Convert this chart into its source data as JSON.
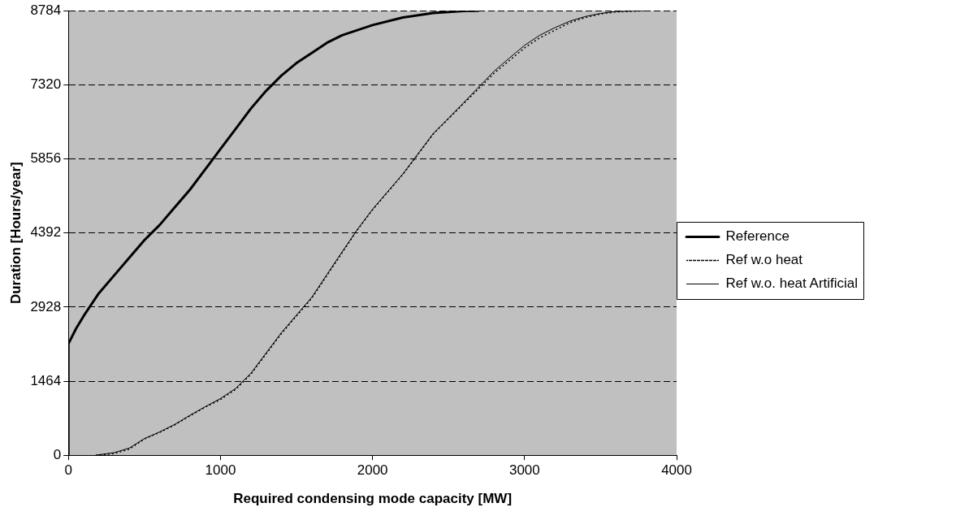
{
  "chart_data": {
    "type": "line",
    "xlabel": "Required condensing mode capacity [MW]",
    "ylabel": "Duration [Hours/year]",
    "xlim": [
      0,
      4000
    ],
    "xticks": [
      0,
      1000,
      2000,
      3000,
      4000
    ],
    "ylim": [
      0,
      8784
    ],
    "yticks": [
      0,
      1464,
      2928,
      4392,
      5856,
      7320,
      8784
    ],
    "grid": "y",
    "legend": "right",
    "marker": "none",
    "series": [
      {
        "name": "Reference",
        "color": "#000000",
        "line_style": "solid",
        "x": [
          0,
          0,
          50,
          100,
          200,
          300,
          400,
          500,
          600,
          700,
          800,
          900,
          1000,
          1100,
          1200,
          1300,
          1400,
          1500,
          1600,
          1700,
          1800,
          1900,
          2000,
          2200,
          2400,
          2600,
          2700
        ],
        "values": [
          0,
          2200,
          2500,
          2750,
          3200,
          3550,
          3900,
          4250,
          4550,
          4900,
          5250,
          5650,
          6050,
          6450,
          6850,
          7200,
          7500,
          7750,
          7950,
          8150,
          8300,
          8400,
          8500,
          8650,
          8740,
          8780,
          8784
        ]
      },
      {
        "name": "Ref w.o heat",
        "color": "#000000",
        "line_style": "dotted",
        "x": [
          180,
          300,
          400,
          500,
          600,
          700,
          800,
          900,
          1000,
          1100,
          1200,
          1300,
          1400,
          1500,
          1600,
          1700,
          1800,
          1900,
          2000,
          2100,
          2200,
          2300,
          2400,
          2500,
          2600,
          2700,
          2800,
          2900,
          3000,
          3100,
          3200,
          3300,
          3400,
          3500,
          3600,
          3800
        ],
        "values": [
          0,
          30,
          120,
          320,
          450,
          600,
          780,
          950,
          1100,
          1300,
          1600,
          2000,
          2400,
          2750,
          3100,
          3550,
          4000,
          4450,
          4850,
          5200,
          5550,
          5950,
          6350,
          6650,
          6950,
          7250,
          7550,
          7800,
          8050,
          8250,
          8400,
          8550,
          8650,
          8720,
          8760,
          8784
        ]
      },
      {
        "name": "Ref w.o. heat Artificial",
        "color": "#000000",
        "line_style": "solid",
        "x": [
          180,
          300,
          400,
          500,
          600,
          700,
          800,
          900,
          1000,
          1100,
          1200,
          1300,
          1400,
          1500,
          1600,
          1700,
          1800,
          1900,
          2000,
          2100,
          2200,
          2300,
          2400,
          2500,
          2600,
          2700,
          2800,
          2900,
          3000,
          3100,
          3200,
          3300,
          3400,
          3500,
          3600,
          3800
        ],
        "values": [
          0,
          50,
          140,
          330,
          460,
          610,
          790,
          960,
          1120,
          1320,
          1620,
          2020,
          2420,
          2770,
          3120,
          3570,
          4020,
          4460,
          4860,
          5210,
          5560,
          5960,
          6360,
          6660,
          6970,
          7280,
          7590,
          7850,
          8100,
          8300,
          8450,
          8580,
          8670,
          8730,
          8770,
          8784
        ]
      }
    ]
  }
}
